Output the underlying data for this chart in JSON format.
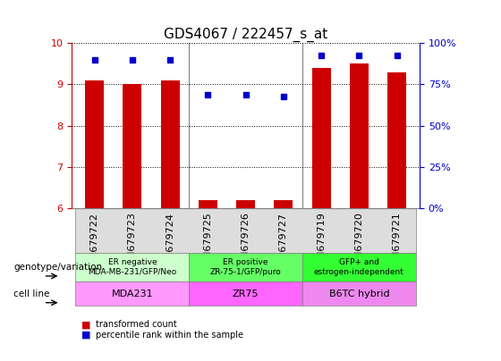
{
  "title": "GDS4067 / 222457_s_at",
  "samples": [
    "GSM679722",
    "GSM679723",
    "GSM679724",
    "GSM679725",
    "GSM679726",
    "GSM679727",
    "GSM679719",
    "GSM679720",
    "GSM679721"
  ],
  "bar_values": [
    9.1,
    9.0,
    9.1,
    6.2,
    6.2,
    6.2,
    9.4,
    9.5,
    9.3
  ],
  "scatter_values": [
    9.6,
    9.6,
    9.6,
    8.75,
    8.75,
    8.7,
    9.7,
    9.7,
    9.7
  ],
  "ylim": [
    6,
    10
  ],
  "yticks": [
    6,
    7,
    8,
    9,
    10
  ],
  "right_yticks": [
    0,
    25,
    50,
    75,
    100
  ],
  "right_ylim": [
    0,
    100
  ],
  "bar_color": "#cc0000",
  "scatter_color": "#0000cc",
  "grid_color": "black",
  "groups": [
    {
      "start": 0,
      "end": 3,
      "genotype": "ER negative\nMDA-MB-231/GFP/Neo",
      "cell_line": "MDA231",
      "geno_color": "#ccffcc",
      "cell_color": "#ff99ff"
    },
    {
      "start": 3,
      "end": 6,
      "genotype": "ER positive\nZR-75-1/GFP/puro",
      "cell_line": "ZR75",
      "geno_color": "#66ff66",
      "cell_color": "#ff66ff"
    },
    {
      "start": 6,
      "end": 9,
      "genotype": "GFP+ and\nestrogen-independent",
      "cell_line": "B6TC hybrid",
      "geno_color": "#33ff33",
      "cell_color": "#ee88ee"
    }
  ],
  "legend_items": [
    {
      "color": "#cc0000",
      "label": "transformed count"
    },
    {
      "color": "#0000cc",
      "label": "percentile rank within the sample"
    }
  ],
  "left_label": "genotype/variation",
  "right_label": "cell line",
  "title_fontsize": 11,
  "tick_fontsize": 8,
  "axis_label_fontsize": 8
}
